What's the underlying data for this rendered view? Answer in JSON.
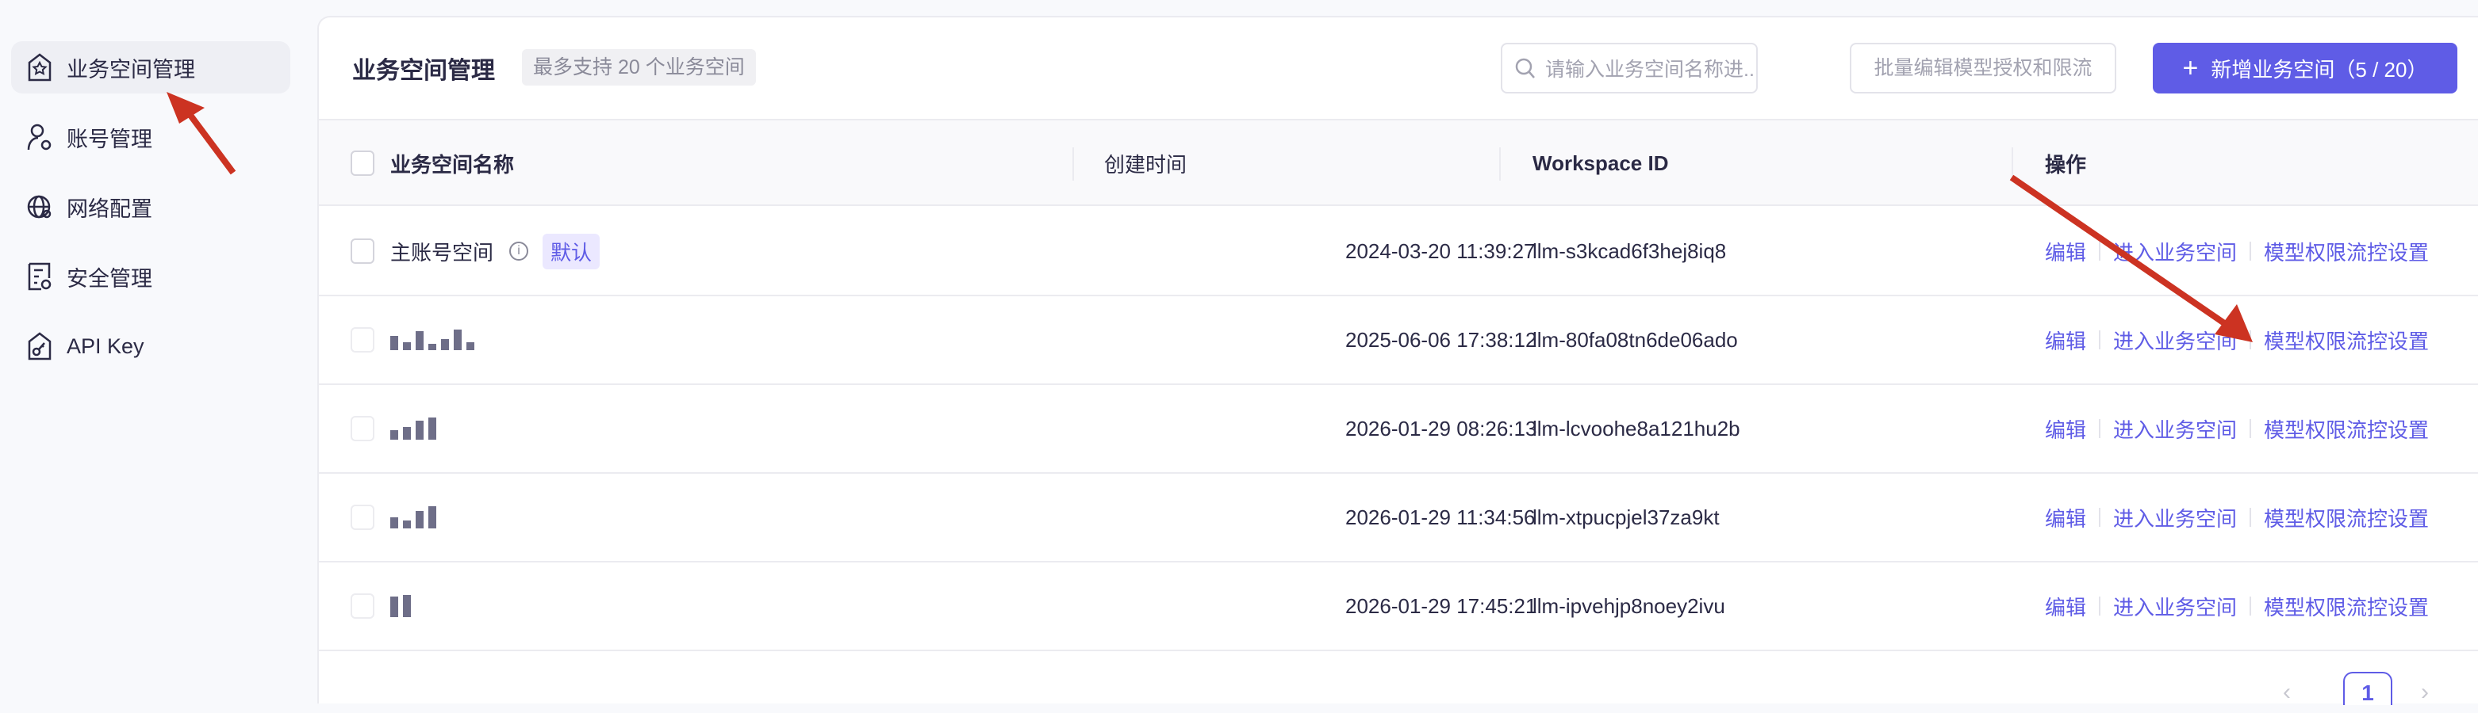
{
  "sidebar": {
    "items": [
      {
        "label": "业务空间管理",
        "icon": "workspace-star-icon",
        "active": true
      },
      {
        "label": "账号管理",
        "icon": "user-gear-icon"
      },
      {
        "label": "网络配置",
        "icon": "globe-icon"
      },
      {
        "label": "安全管理",
        "icon": "security-doc-icon"
      },
      {
        "label": "API Key",
        "icon": "key-icon"
      }
    ]
  },
  "header": {
    "title": "业务空间管理",
    "badge": "最多支持 20 个业务空间",
    "search_placeholder": "请输入业务空间名称进...",
    "batch_button": "批量编辑模型授权和限流",
    "add_button": "新增业务空间（5 / 20）"
  },
  "table": {
    "columns": [
      "业务空间名称",
      "创建时间",
      "Workspace ID",
      "操作"
    ],
    "rows": [
      {
        "name": "主账号空间",
        "tag": "默认",
        "created": "2024-03-20 11:39:27",
        "id": "llm-s3kcad6f3hej8iq8"
      },
      {
        "name": "",
        "created": "2025-06-06 17:38:12",
        "id": "llm-80fa08tn6de06ado"
      },
      {
        "name": "",
        "created": "2026-01-29 08:26:13",
        "id": "llm-lcvoohe8a121hu2b"
      },
      {
        "name": "",
        "created": "2026-01-29 11:34:56",
        "id": "llm-xtpucpjel37za9kt"
      },
      {
        "name": "",
        "created": "2026-01-29 17:45:21",
        "id": "llm-ipvehjp8noey2ivu"
      }
    ],
    "actions": [
      "编辑",
      "进入业务空间",
      "模型权限流控设置"
    ]
  },
  "pagination": {
    "current": "1"
  },
  "colors": {
    "accent": "#5f5ce6",
    "annotation": "#cc3322"
  }
}
